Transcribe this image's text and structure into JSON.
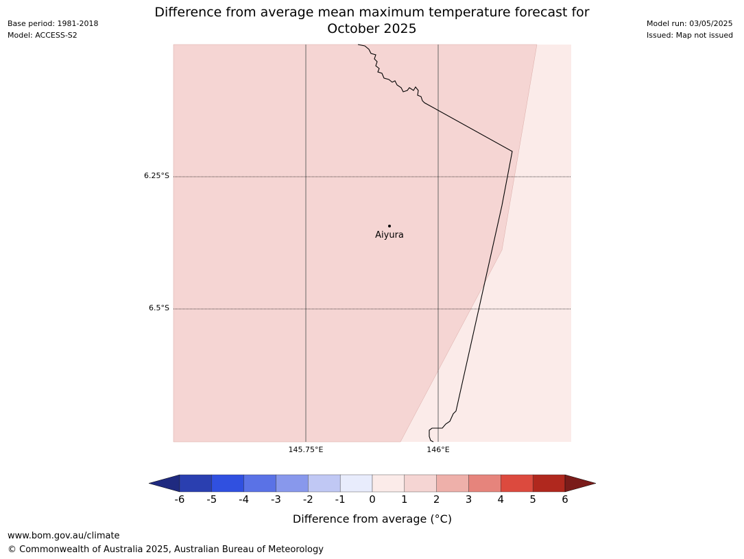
{
  "header": {
    "base_period": "Base period: 1981-2018",
    "model": "Model: ACCESS-S2",
    "model_run": "Model run: 03/05/2025",
    "issued": "Issued: Map not issued",
    "title_line1": "Difference from average mean maximum temperature forecast for",
    "title_line2": "October 2025"
  },
  "map": {
    "lat_labels": [
      "6.25°S",
      "6.5°S"
    ],
    "lon_labels": [
      "145.75°E",
      "146°E"
    ],
    "place": "Aiyura",
    "fill_main": "#f5d5d3",
    "fill_light": "#fbebe9"
  },
  "colorbar": {
    "title": "Difference from average (°C)",
    "ticks": [
      "-6",
      "-5",
      "-4",
      "-3",
      "-2",
      "-1",
      "0",
      "1",
      "2",
      "3",
      "4",
      "5",
      "6"
    ],
    "under_color": "#1f2a80",
    "over_color": "#7a1c1a",
    "colors": [
      "#2a3fb0",
      "#3050e0",
      "#5a72e6",
      "#8898ec",
      "#c0c8f4",
      "#e8ecfc",
      "#fbebe9",
      "#f5d5d3",
      "#eeb0aa",
      "#e6847c",
      "#dc4a3e",
      "#b0281e"
    ]
  },
  "footer": {
    "url": "www.bom.gov.au/climate",
    "copyright": "© Commonwealth of Australia 2025, Australian Bureau of Meteorology"
  }
}
